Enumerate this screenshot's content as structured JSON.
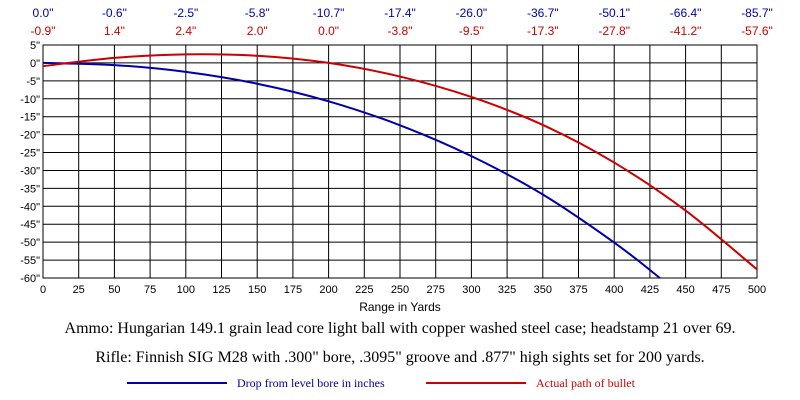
{
  "chart_data": {
    "type": "line",
    "xlabel": "Range in Yards",
    "ylabel": "",
    "xlim": [
      0,
      500
    ],
    "ylim": [
      -60,
      5
    ],
    "grid": true,
    "x_ticks": [
      "0",
      "25",
      "50",
      "75",
      "100",
      "125",
      "150",
      "175",
      "200",
      "225",
      "250",
      "275",
      "300",
      "325",
      "350",
      "375",
      "400",
      "425",
      "450",
      "475",
      "500"
    ],
    "y_ticks": [
      "5\"",
      "0\"",
      "-5\"",
      "-10\"",
      "-15\"",
      "-20\"",
      "-25\"",
      "-30\"",
      "-35\"",
      "-40\"",
      "-45\"",
      "-50\"",
      "-55\"",
      "-60\""
    ],
    "top_row_drop": [
      "0.0\"",
      "-0.6\"",
      "-2.5\"",
      "-5.8\"",
      "-10.7\"",
      "-17.4\"",
      "-26.0\"",
      "-36.7\"",
      "-50.1\"",
      "-66.4\"",
      "-85.7\""
    ],
    "top_row_path": [
      "-0.9\"",
      "1.4\"",
      "2.4\"",
      "2.0\"",
      "0.0\"",
      "-3.8\"",
      "-9.5\"",
      "-17.3\"",
      "-27.8\"",
      "-41.2\"",
      "-57.6\""
    ],
    "series": [
      {
        "name": "Drop from level bore in inches",
        "color": "#0000aa",
        "x": [
          0,
          50,
          100,
          150,
          200,
          250,
          300,
          350,
          400,
          432
        ],
        "values": [
          0.0,
          -0.6,
          -2.5,
          -5.8,
          -10.7,
          -17.4,
          -26.0,
          -36.7,
          -50.1,
          -60.0
        ]
      },
      {
        "name": "Actual path of bullet",
        "color": "#cc0000",
        "x": [
          0,
          50,
          100,
          150,
          200,
          250,
          300,
          350,
          400,
          450,
          500
        ],
        "values": [
          -0.9,
          1.4,
          2.4,
          2.0,
          0.0,
          -3.8,
          -9.5,
          -17.3,
          -27.8,
          -41.2,
          -57.6
        ]
      }
    ]
  },
  "notes": {
    "ammo": "Ammo:  Hungarian 149.1 grain lead core light ball with copper washed steel case; headstamp 21 over 69.",
    "rifle": "Rifle:  Finnish SIG M28 with .300\" bore, .3095\" groove and .877\" high sights set for 200 yards."
  },
  "legend": {
    "drop_label": "Drop from level bore in inches",
    "path_label": "Actual path of bullet"
  }
}
